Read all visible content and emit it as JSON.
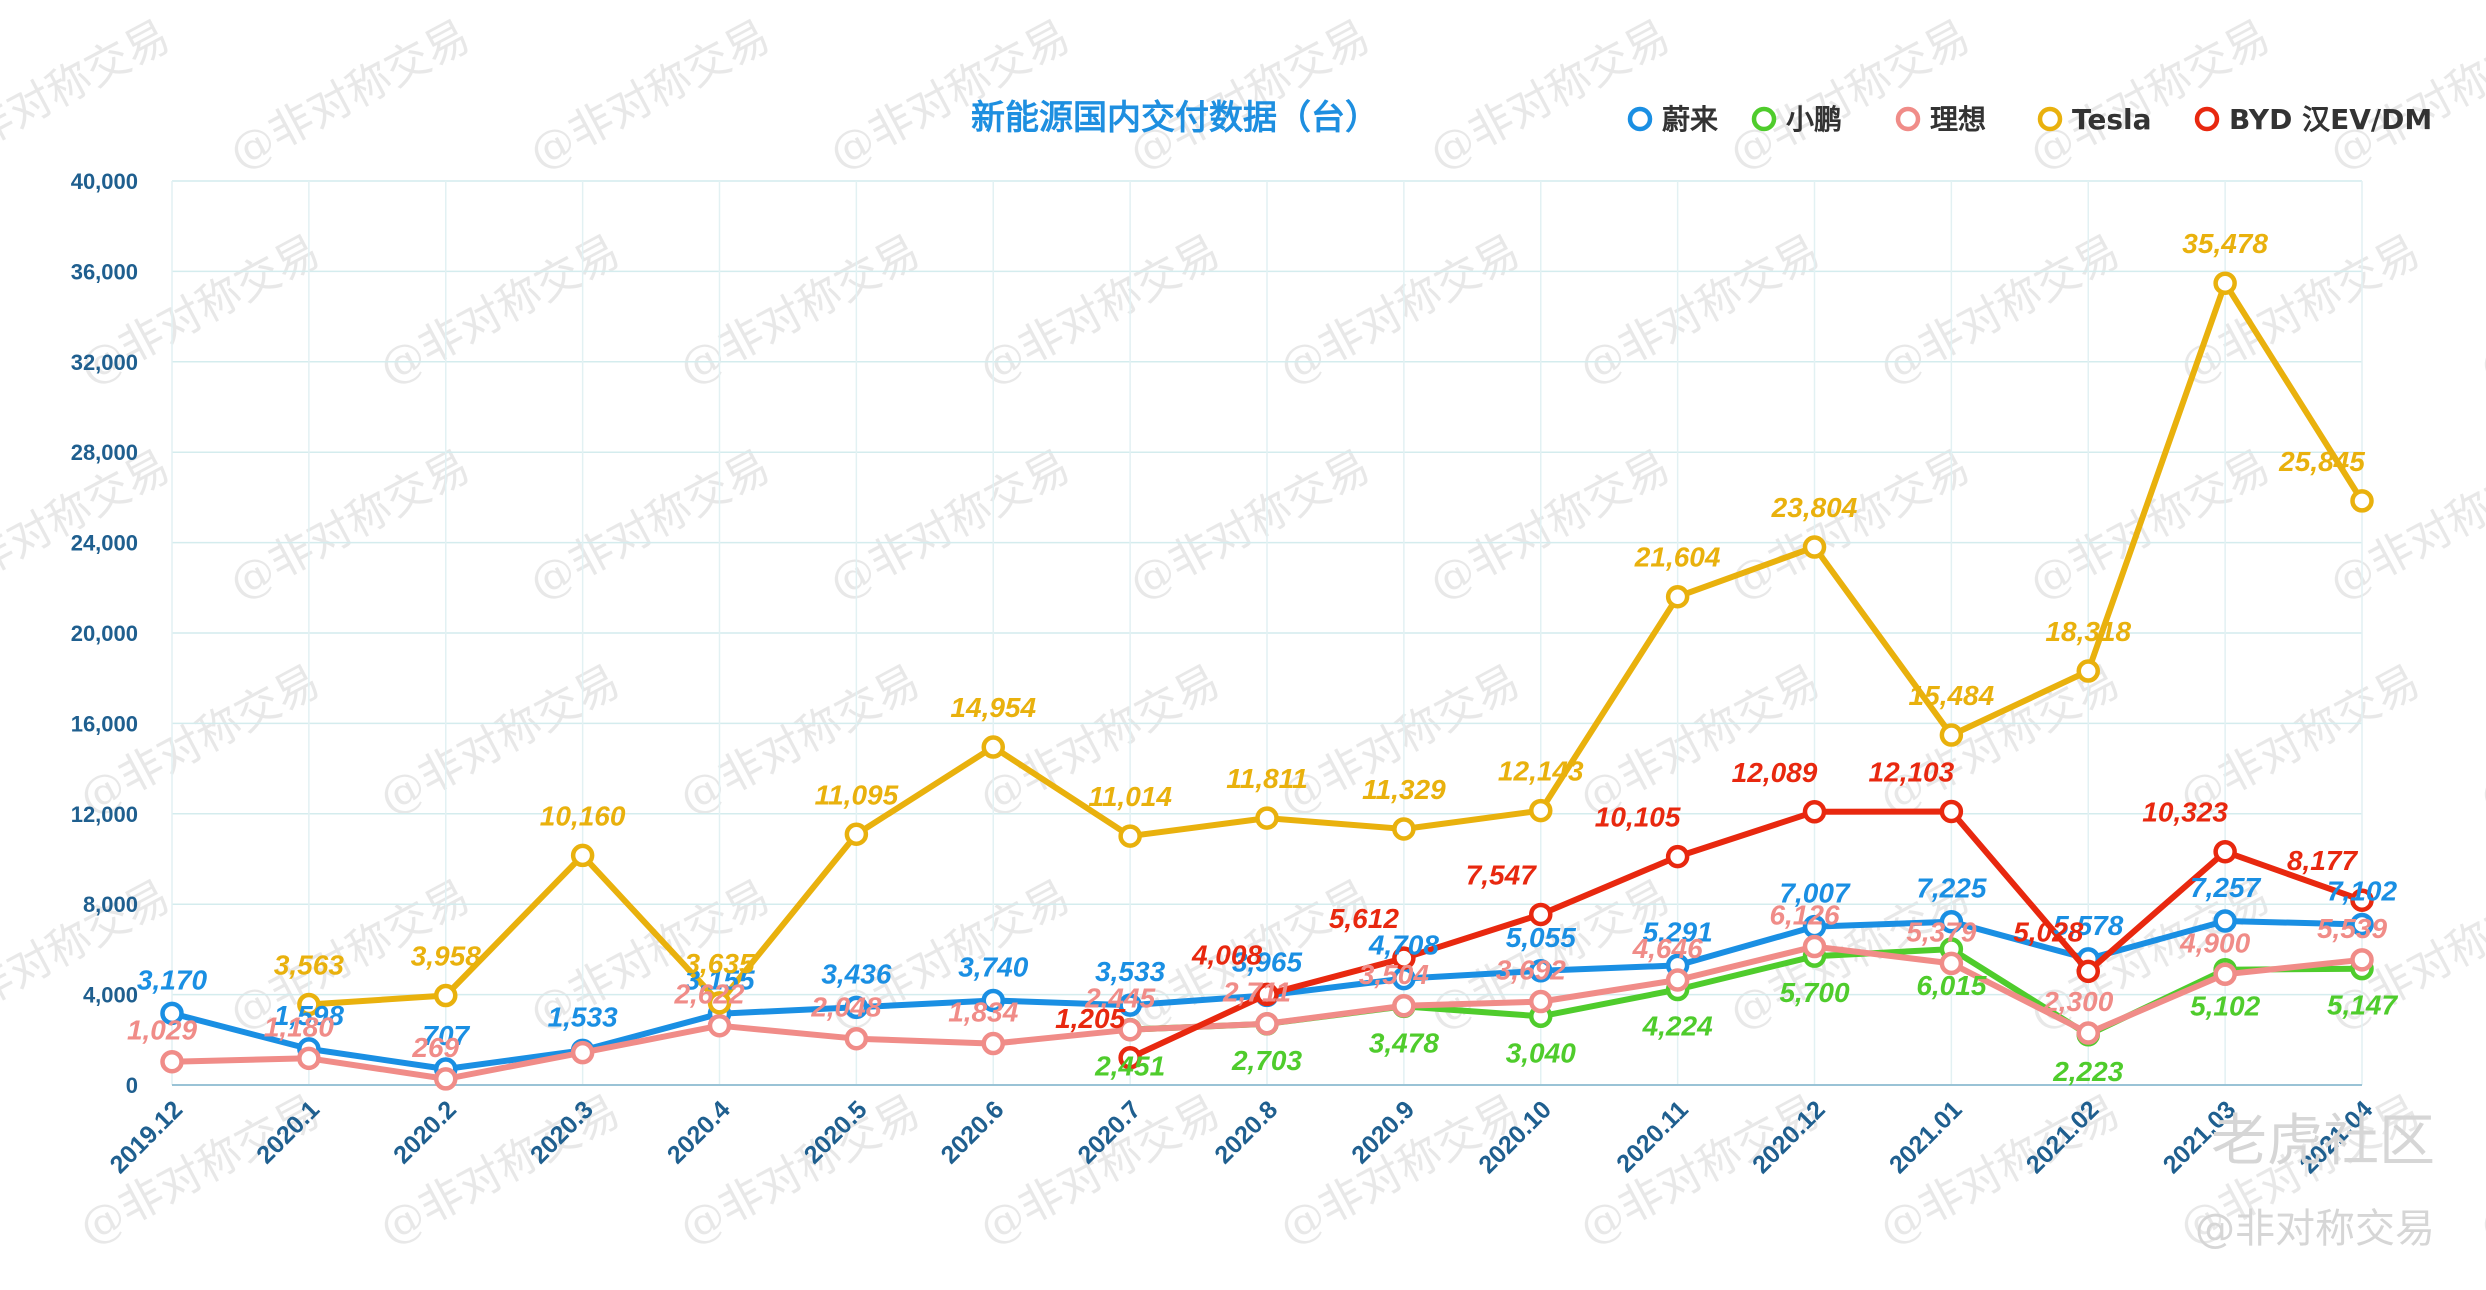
{
  "chart_data": {
    "type": "line",
    "title": "新能源国内交付数据（台）",
    "categories": [
      "2019.12",
      "2020.1",
      "2020.2",
      "2020.3",
      "2020.4",
      "2020.5",
      "2020.6",
      "2020.7",
      "2020.8",
      "2020.9",
      "2020.10",
      "2020.11",
      "2020.12",
      "2021.01",
      "2021.02",
      "2021.03",
      "2021.04"
    ],
    "ylim": [
      0,
      40000
    ],
    "yticks": [
      0,
      4000,
      8000,
      12000,
      16000,
      20000,
      24000,
      28000,
      32000,
      36000,
      40000
    ],
    "ytick_labels": [
      "0",
      "4,000",
      "8,000",
      "12,000",
      "16,000",
      "20,000",
      "24,000",
      "28,000",
      "32,000",
      "36,000",
      "40,000"
    ],
    "grid": true,
    "legend_position": "top-right",
    "series": [
      {
        "name": "蔚来",
        "color": "#1a8fe3",
        "values": [
          3170,
          1598,
          707,
          1533,
          3155,
          3436,
          3740,
          3533,
          3965,
          4708,
          5055,
          5291,
          7007,
          7225,
          5578,
          7257,
          7102
        ],
        "labels": [
          "3,170",
          "1,598",
          "707",
          "1,533",
          "3,155",
          "3,436",
          "3,740",
          "3,533",
          "3,965",
          "4,708",
          "5,055",
          "5,291",
          "7,007",
          "7,225",
          "5,578",
          "7,257",
          "7,102"
        ]
      },
      {
        "name": "小鹏",
        "color": "#4fcc2c",
        "values": [
          null,
          null,
          null,
          null,
          null,
          null,
          null,
          2451,
          2703,
          3478,
          3040,
          4224,
          5700,
          6015,
          2223,
          5102,
          5147
        ],
        "labels": [
          "",
          "",
          "",
          "",
          "",
          "",
          "",
          "2,451",
          "2,703",
          "3,478",
          "3,040",
          "4,224",
          "5,700",
          "6,015",
          "2,223",
          "5,102",
          "5,147"
        ]
      },
      {
        "name": "理想",
        "color": "#f08c88",
        "values": [
          1029,
          1180,
          269,
          1432,
          2622,
          2048,
          1834,
          2445,
          2711,
          3504,
          3692,
          4646,
          6126,
          5379,
          2300,
          4900,
          5539
        ],
        "labels": [
          "1,029",
          "1,180",
          "269",
          "",
          "2,622",
          "2,048",
          "1,834",
          "2,445",
          "2,711",
          "3,504",
          "3,692",
          "4,646",
          "6,126",
          "5,379",
          "2,300",
          "4,900",
          "5,539"
        ]
      },
      {
        "name": "Tesla",
        "color": "#e9b10d",
        "values": [
          null,
          3563,
          3958,
          10160,
          3635,
          11095,
          14954,
          11014,
          11811,
          11329,
          12143,
          21604,
          23804,
          15484,
          18318,
          35478,
          25845
        ],
        "labels": [
          "",
          "3,563",
          "3,958",
          "10,160",
          "3,635",
          "11,095",
          "14,954",
          "11,014",
          "11,811",
          "11,329",
          "12,143",
          "21,604",
          "23,804",
          "15,484",
          "18,318",
          "35,478",
          "25,845"
        ]
      },
      {
        "name": "BYD 汉EV/DM",
        "color": "#e8280f",
        "values": [
          null,
          null,
          null,
          null,
          null,
          null,
          null,
          1205,
          4008,
          5612,
          7547,
          10105,
          12089,
          12103,
          5028,
          10323,
          8177
        ],
        "labels": [
          "",
          "",
          "",
          "",
          "",
          "",
          "",
          "1,205",
          "4,008",
          "5,612",
          "7,547",
          "10,105",
          "12,089",
          "12,103",
          "5,028",
          "10,323",
          "8,177"
        ]
      }
    ]
  },
  "watermark": {
    "text": "@非对称交易",
    "brand": "老虎社区",
    "handle": "@非对称交易"
  }
}
